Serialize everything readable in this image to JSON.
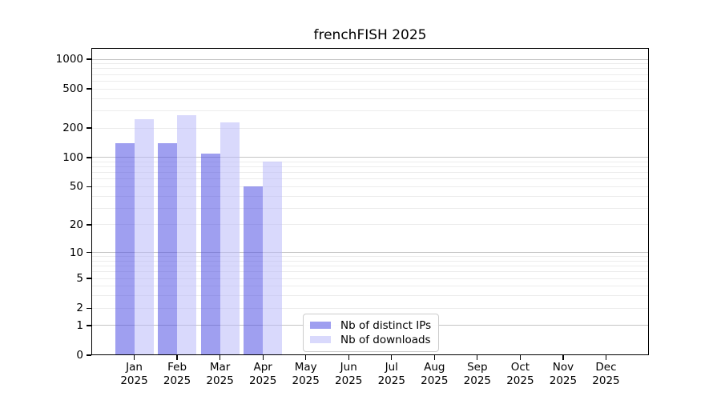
{
  "chart_data": {
    "type": "bar",
    "title": "frenchFISH 2025",
    "categories": [
      "Jan",
      "Feb",
      "Mar",
      "Apr",
      "May",
      "Jun",
      "Jul",
      "Aug",
      "Sep",
      "Oct",
      "Nov",
      "Dec"
    ],
    "x_sublabel": "2025",
    "series": [
      {
        "name": "Nb of distinct IPs",
        "color": "#9f9ff2",
        "fill": "rgba(80,80,228,0.55)",
        "values": [
          140,
          140,
          110,
          50,
          0,
          0,
          0,
          0,
          0,
          0,
          0,
          0
        ]
      },
      {
        "name": "Nb of downloads",
        "color": "#d8d8fb",
        "fill": "rgba(185,185,250,0.55)",
        "values": [
          245,
          270,
          228,
          90,
          0,
          0,
          0,
          0,
          0,
          0,
          0,
          0
        ]
      }
    ],
    "yscale": "log1p",
    "ylim": [
      0,
      1300
    ],
    "yticks": [
      1000,
      500,
      200,
      100,
      50,
      20,
      10,
      5,
      2,
      1,
      0
    ],
    "grid_major": [
      1,
      10,
      100,
      1000
    ],
    "grid_minor": [
      2,
      3,
      4,
      5,
      6,
      7,
      8,
      9,
      20,
      30,
      40,
      50,
      60,
      70,
      80,
      90,
      200,
      300,
      400,
      500,
      600,
      700,
      800,
      900
    ],
    "grid_major_color": "#c3c3c3",
    "grid_minor_color": "#ececec",
    "legend_position": "lower center",
    "xlabel": "",
    "ylabel": ""
  }
}
